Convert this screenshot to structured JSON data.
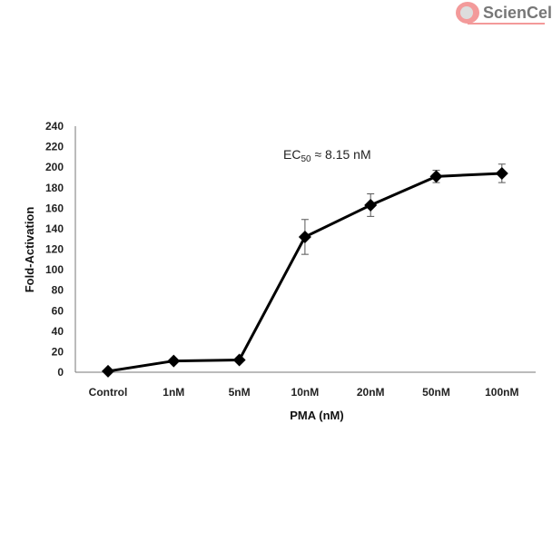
{
  "logo": {
    "text": "ScienCell",
    "colors": {
      "accent": "#f39a9a",
      "text": "#777777"
    }
  },
  "chart_data": {
    "type": "line",
    "categories": [
      "Control",
      "1nM",
      "5nM",
      "10nM",
      "20nM",
      "50nM",
      "100nM"
    ],
    "series": [
      {
        "values": [
          1,
          11,
          12,
          132,
          163,
          191,
          194
        ],
        "error": [
          0,
          1,
          1,
          17,
          11,
          6,
          9
        ],
        "marker": "diamond",
        "color": "#000000"
      }
    ],
    "xlabel": "PMA (nM)",
    "ylabel": "Fold-Activation",
    "ylim": [
      0,
      240
    ],
    "yticks": [
      "0",
      "20",
      "40",
      "60",
      "80",
      "100",
      "120",
      "140",
      "160",
      "180",
      "200",
      "220",
      "240"
    ],
    "annotation": "EC50 ≈ 8.15 nM",
    "annotation_parts": {
      "main": "EC",
      "sub": "50",
      "rest": " ≈ 8.15 nM"
    },
    "grid": false
  }
}
